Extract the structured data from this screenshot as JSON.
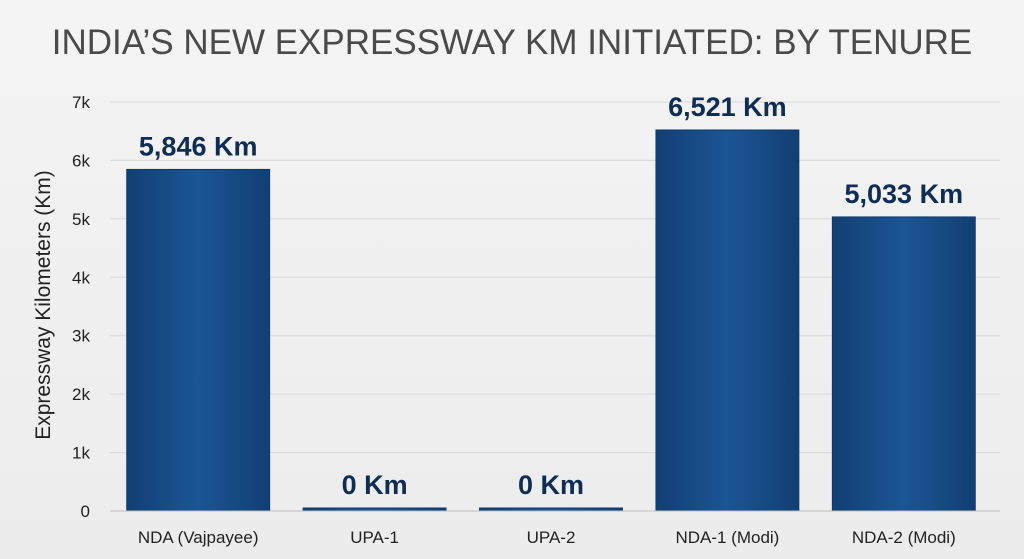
{
  "chart_data": {
    "type": "bar",
    "title": "INDIA’S NEW EXPRESSWAY KM INITIATED: BY TENURE",
    "xlabel": "",
    "ylabel": "Expressway Kilometers (Km)",
    "categories": [
      "NDA (Vajpayee)",
      "UPA-1",
      "UPA-2",
      "NDA-1 (Modi)",
      "NDA-2 (Modi)"
    ],
    "values": [
      5846,
      0,
      0,
      6521,
      5033
    ],
    "data_labels": [
      "5,846 Km",
      "0 Km",
      "0 Km",
      "6,521 Km",
      "5,033 Km"
    ],
    "ylim": [
      0,
      7000
    ],
    "yticks": [
      0,
      1000,
      2000,
      3000,
      4000,
      5000,
      6000,
      7000
    ],
    "ytick_labels": [
      "0",
      "1k",
      "2k",
      "3k",
      "4k",
      "5k",
      "6k",
      "7k"
    ],
    "grid": true,
    "legend": "none",
    "bar_color": "#174f8c",
    "label_color": "#0e2d55"
  }
}
